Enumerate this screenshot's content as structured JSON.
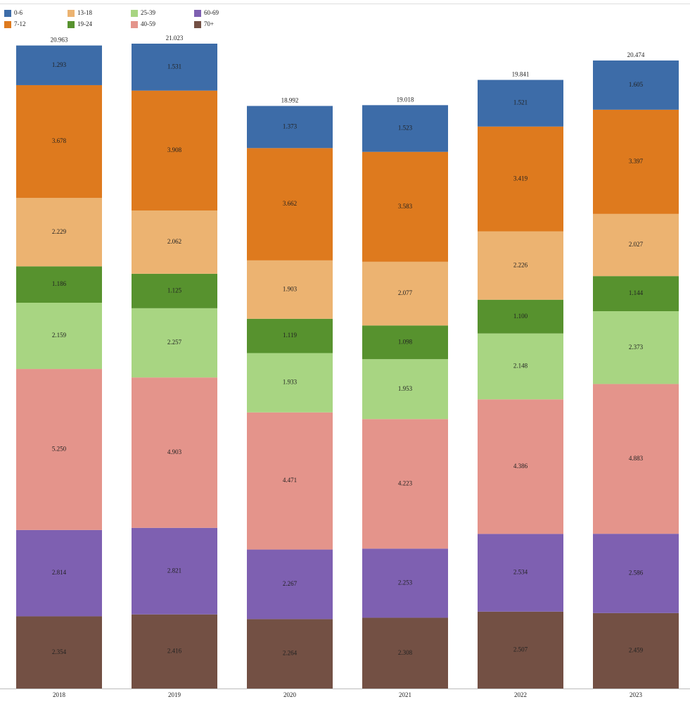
{
  "chart_data": {
    "type": "stacked_bar",
    "categories": [
      "2018",
      "2019",
      "2020",
      "2021",
      "2022",
      "2023"
    ],
    "totals": [
      20.963,
      21.023,
      18.992,
      19.018,
      19.841,
      20.474
    ],
    "series": [
      {
        "name": "0-6",
        "color": "#3d6ca8",
        "values": [
          1.293,
          1.531,
          1.373,
          1.523,
          1.521,
          1.605
        ],
        "value_labels": [
          "1.293",
          "1.531",
          "1.373",
          "1.523",
          "1.521",
          "1.605"
        ]
      },
      {
        "name": "7-12",
        "color": "#de7a1e",
        "values": [
          3.678,
          3.908,
          3.662,
          3.583,
          3.419,
          3.397
        ],
        "value_labels": [
          "3.678",
          "3.908",
          "3.662",
          "3.583",
          "3.419",
          "3.397"
        ]
      },
      {
        "name": "13-18",
        "color": "#ecb371",
        "values": [
          2.229,
          2.062,
          1.903,
          2.077,
          2.226,
          2.027
        ],
        "value_labels": [
          "2.229",
          "2.062",
          "1.903",
          "2.077",
          "2.226",
          "2.027"
        ]
      },
      {
        "name": "19-24",
        "color": "#57922e",
        "values": [
          1.186,
          1.125,
          1.119,
          1.098,
          1.1,
          1.144
        ],
        "value_labels": [
          "1.186",
          "1.125",
          "1.119",
          "1.098",
          "1.100",
          "1.144"
        ]
      },
      {
        "name": "25-39",
        "color": "#a8d582",
        "values": [
          2.159,
          2.257,
          1.933,
          1.953,
          2.148,
          2.373
        ],
        "value_labels": [
          "2.159",
          "2.257",
          "1.933",
          "1.953",
          "2.148",
          "2.373"
        ]
      },
      {
        "name": "40-59",
        "color": "#e4948b",
        "values": [
          5.25,
          4.903,
          4.471,
          4.223,
          4.386,
          4.883
        ],
        "value_labels": [
          "5.250",
          "4.903",
          "4.471",
          "4.223",
          "4.386",
          "4.883"
        ]
      },
      {
        "name": "60-69",
        "color": "#7e60b1",
        "values": [
          2.814,
          2.821,
          2.267,
          2.253,
          2.534,
          2.586
        ],
        "value_labels": [
          "2.814",
          "2.821",
          "2.267",
          "2.253",
          "2.534",
          "2.586"
        ]
      },
      {
        "name": "70+",
        "color": "#735044",
        "values": [
          2.354,
          2.416,
          2.264,
          2.308,
          2.507,
          2.459
        ],
        "value_labels": [
          "2.354",
          "2.416",
          "2.264",
          "2.308",
          "2.507",
          "2.459"
        ]
      }
    ]
  }
}
